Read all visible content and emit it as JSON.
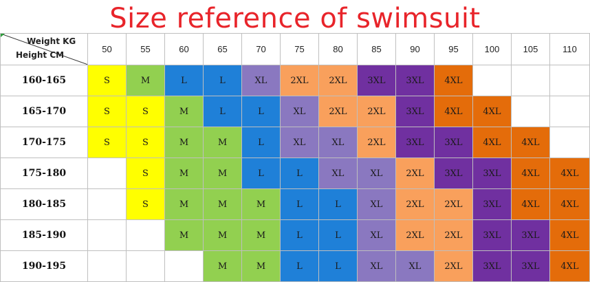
{
  "title": "Size reference of swimsuit",
  "header": {
    "weight_label": "Weight KG",
    "height_label": "Height CM",
    "weights": [
      "50",
      "55",
      "60",
      "65",
      "70",
      "75",
      "80",
      "85",
      "90",
      "95",
      "100",
      "105",
      "110"
    ]
  },
  "colors": {
    "title": "#e8242a",
    "S": "#ffff00",
    "M": "#92d050",
    "L": "#1f80d8",
    "XL": "#8a78c0",
    "2XL": "#f9a05c",
    "3XL": "#7030a0",
    "4XL": "#e46c0a"
  },
  "rows": [
    {
      "height": "160-165",
      "sizes": [
        "S",
        "M",
        "L",
        "L",
        "XL",
        "2XL",
        "2XL",
        "3XL",
        "3XL",
        "4XL",
        "",
        "",
        ""
      ]
    },
    {
      "height": "165-170",
      "sizes": [
        "S",
        "S",
        "M",
        "L",
        "L",
        "XL",
        "2XL",
        "2XL",
        "3XL",
        "4XL",
        "4XL",
        "",
        ""
      ]
    },
    {
      "height": "170-175",
      "sizes": [
        "S",
        "S",
        "M",
        "M",
        "L",
        "XL",
        "XL",
        "2XL",
        "3XL",
        "3XL",
        "4XL",
        "4XL",
        ""
      ]
    },
    {
      "height": "175-180",
      "sizes": [
        "",
        "S",
        "M",
        "M",
        "L",
        "L",
        "XL",
        "XL",
        "2XL",
        "3XL",
        "3XL",
        "4XL",
        "4XL"
      ]
    },
    {
      "height": "180-185",
      "sizes": [
        "",
        "S",
        "M",
        "M",
        "M",
        "L",
        "L",
        "XL",
        "2XL",
        "2XL",
        "3XL",
        "4XL",
        "4XL"
      ]
    },
    {
      "height": "185-190",
      "sizes": [
        "",
        "",
        "M",
        "M",
        "M",
        "L",
        "L",
        "XL",
        "2XL",
        "2XL",
        "3XL",
        "3XL",
        "4XL"
      ]
    },
    {
      "height": "190-195",
      "sizes": [
        "",
        "",
        "",
        "M",
        "M",
        "L",
        "L",
        "XL",
        "XL",
        "2XL",
        "3XL",
        "3XL",
        "4XL"
      ]
    }
  ]
}
